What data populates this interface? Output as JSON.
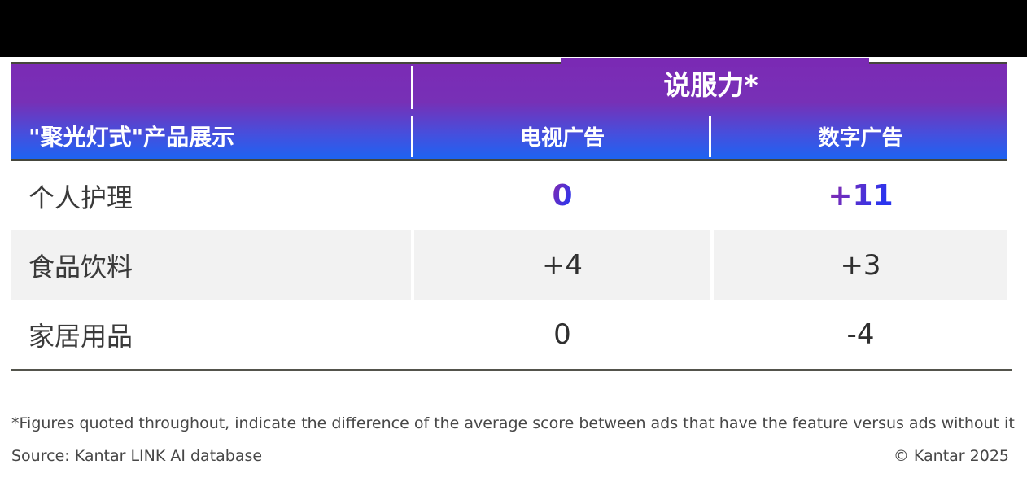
{
  "page": {
    "background": "#FFFFFF",
    "top_bar_color": "#000000"
  },
  "colors": {
    "header_gradient_top": "#7B2BB5",
    "header_gradient_bottom": "#1E63F2",
    "border_dark": "#45463C",
    "alt_row_bg": "#F2F2F2",
    "body_text": "#3A3A3A",
    "highlight_gradient_start": "#7B2BB5",
    "highlight_gradient_end": "#2B35EE"
  },
  "table": {
    "corner_header": "\"聚光灯式\"产品展示",
    "group_header": "说服力*",
    "columns": [
      {
        "label": "电视广告"
      },
      {
        "label": "数字广告"
      }
    ],
    "rows": [
      {
        "label": "个人护理",
        "tv": "0",
        "digital": "+11"
      },
      {
        "label": "食品饮料",
        "tv": "+4",
        "digital": "+3"
      },
      {
        "label": "家居用品",
        "tv": "0",
        "digital": "-4"
      }
    ]
  },
  "chart_data": {
    "type": "table",
    "title": "说服力*",
    "row_header": "\"聚光灯式\"产品展示",
    "columns": [
      "电视广告",
      "数字广告"
    ],
    "rows": [
      {
        "category": "个人护理",
        "values": [
          0,
          11
        ],
        "display": [
          "0",
          "+11"
        ]
      },
      {
        "category": "食品饮料",
        "values": [
          4,
          3
        ],
        "display": [
          "+4",
          "+3"
        ]
      },
      {
        "category": "家居用品",
        "values": [
          0,
          -4
        ],
        "display": [
          "0",
          "-4"
        ]
      }
    ],
    "legend_position": "none",
    "notes": "Score difference for ads with the feature versus ads without it"
  },
  "footer": {
    "footnote": "*Figures quoted throughout, indicate the difference of the average score between ads that have the feature versus ads without it",
    "source": "Source: Kantar LINK AI database",
    "copyright": "© Kantar 2025"
  }
}
